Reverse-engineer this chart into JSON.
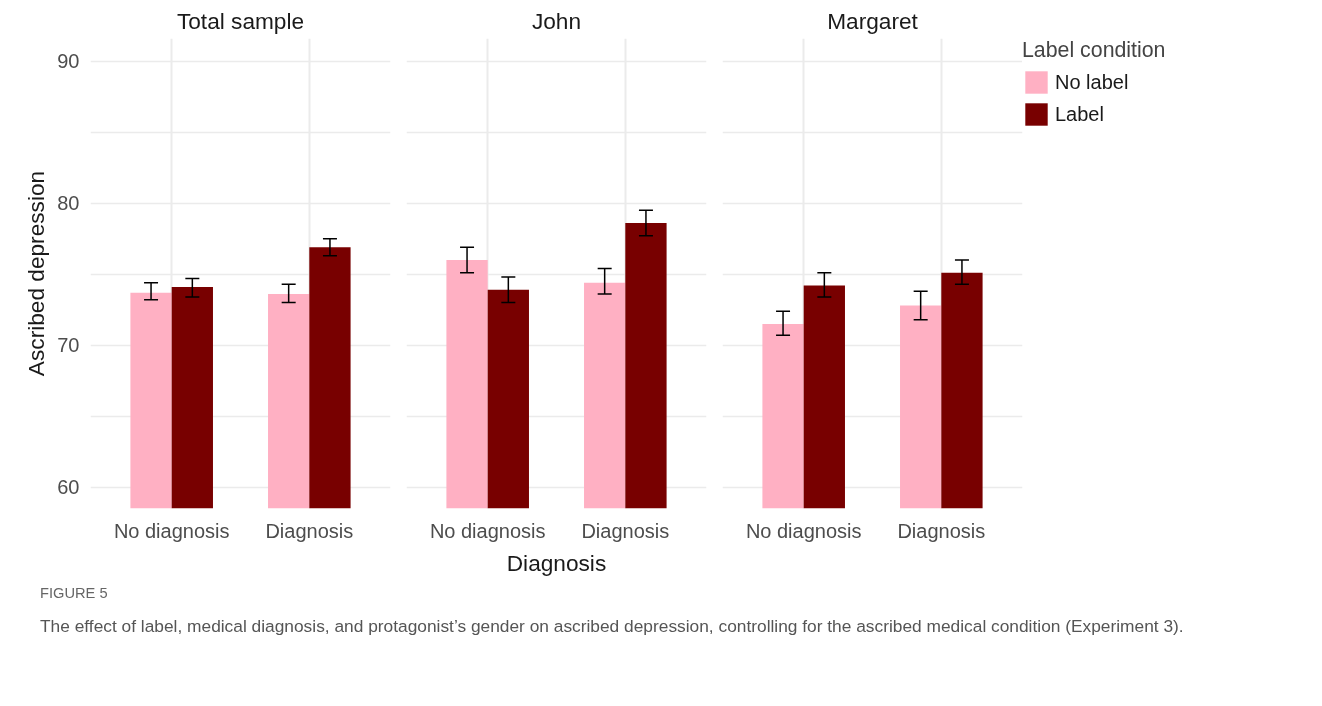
{
  "chart_data": [
    {
      "type": "bar",
      "title": "Total sample",
      "ylabel": "Ascribed depression",
      "categories": [
        "No diagnosis",
        "Diagnosis"
      ],
      "ylim": [
        58.5,
        91.6
      ],
      "yticks": [
        60,
        {
          "value": 65,
          "label": null
        },
        70,
        {
          "value": 75,
          "label": null
        },
        80,
        {
          "value": 85,
          "label": null
        },
        90
      ],
      "grid": true,
      "series": [
        {
          "color": "#ffb0c3",
          "values": [
            73.7,
            73.6
          ],
          "errors": [
            [
              73.2,
              74.4
            ],
            [
              73.0,
              74.3
            ]
          ]
        },
        {
          "color": "#780000",
          "values": [
            74.1,
            76.9
          ],
          "errors": [
            [
              73.4,
              74.7
            ],
            [
              76.3,
              77.5
            ]
          ]
        }
      ]
    },
    {
      "type": "bar",
      "title": "John",
      "xlabel": "Diagnosis",
      "categories": [
        "No diagnosis",
        "Diagnosis"
      ],
      "ylim": [
        58.5,
        91.6
      ],
      "yticks": [
        60,
        {
          "value": 65,
          "label": null
        },
        70,
        {
          "value": 75,
          "label": null
        },
        80,
        {
          "value": 85,
          "label": null
        },
        90
      ],
      "grid": true,
      "tick_labels": "x",
      "series": [
        {
          "color": "#ffb0c3",
          "values": [
            76.0,
            74.4
          ],
          "errors": [
            [
              75.1,
              76.9
            ],
            [
              73.6,
              75.4
            ]
          ]
        },
        {
          "color": "#780000",
          "values": [
            73.9,
            78.6
          ],
          "errors": [
            [
              73.0,
              74.8
            ],
            [
              77.7,
              79.5
            ]
          ]
        }
      ]
    },
    {
      "type": "bar",
      "title": "Margaret",
      "categories": [
        "No diagnosis",
        "Diagnosis"
      ],
      "ylim": [
        58.5,
        91.6
      ],
      "yticks": [
        60,
        {
          "value": 65,
          "label": null
        },
        70,
        {
          "value": 75,
          "label": null
        },
        80,
        {
          "value": 85,
          "label": null
        },
        90
      ],
      "grid": true,
      "tick_labels": "x",
      "legend": "right",
      "legend_title": "Label condition",
      "annotations": [
        "FIGURE 5",
        "The effect of label, medical diagnosis, and protagonist’s gender on ascribed depression, controlling for the ascribed medical condition (Experiment 3)."
      ],
      "series": [
        {
          "name": "No label",
          "color": "#ffb0c3",
          "values": [
            71.5,
            72.8
          ],
          "errors": [
            [
              70.7,
              72.4
            ],
            [
              71.8,
              73.8
            ]
          ]
        },
        {
          "name": "Label",
          "color": "#780000",
          "values": [
            74.2,
            75.1
          ],
          "errors": [
            [
              73.4,
              75.1
            ],
            [
              74.3,
              76.0
            ]
          ]
        }
      ]
    }
  ]
}
